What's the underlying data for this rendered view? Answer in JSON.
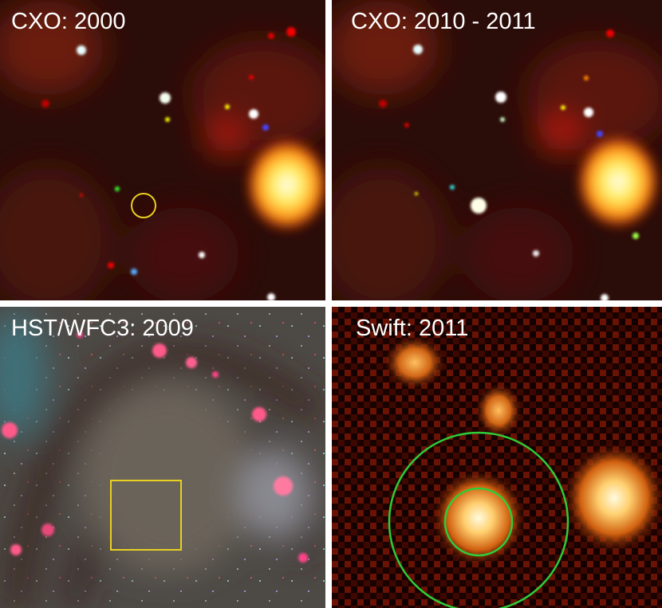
{
  "panels": [
    {
      "label": "CXO: 2000"
    },
    {
      "label": "CXO: 2010 - 2011"
    },
    {
      "label": "HST/WFC3: 2009"
    },
    {
      "label": "Swift: 2011"
    }
  ]
}
